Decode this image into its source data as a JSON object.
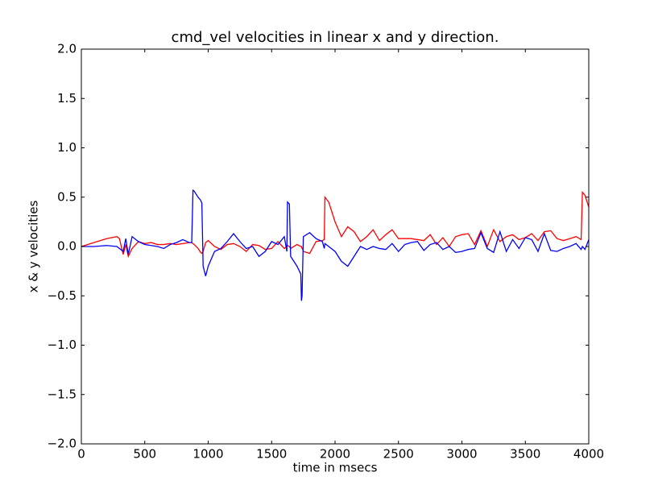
{
  "chart_data": {
    "type": "line",
    "title": "cmd_vel velocities in linear x and y direction.",
    "x_label": "time in msecs",
    "y_label": "x & y velocities",
    "x": [
      0,
      100,
      200,
      280,
      300,
      330,
      350,
      370,
      400,
      450,
      500,
      550,
      600,
      650,
      700,
      750,
      800,
      850,
      870,
      880,
      890,
      920,
      940,
      950,
      960,
      980,
      1000,
      1050,
      1100,
      1150,
      1200,
      1250,
      1300,
      1350,
      1400,
      1450,
      1500,
      1550,
      1600,
      1620,
      1625,
      1640,
      1650,
      1700,
      1730,
      1735,
      1740,
      1745,
      1750,
      1800,
      1850,
      1900,
      1915,
      1920,
      1950,
      2000,
      2050,
      2100,
      2150,
      2200,
      2250,
      2300,
      2350,
      2400,
      2450,
      2500,
      2550,
      2600,
      2650,
      2700,
      2750,
      2800,
      2850,
      2900,
      2950,
      3000,
      3050,
      3100,
      3150,
      3200,
      3250,
      3300,
      3350,
      3400,
      3450,
      3500,
      3550,
      3600,
      3650,
      3700,
      3750,
      3800,
      3850,
      3900,
      3940,
      3950,
      3970,
      4000
    ],
    "series": [
      {
        "color": "#ff0000",
        "values": [
          0.0,
          0.04,
          0.08,
          0.1,
          0.08,
          -0.08,
          0.02,
          -0.1,
          -0.02,
          0.05,
          0.03,
          0.04,
          0.02,
          0.02,
          0.03,
          0.02,
          0.03,
          0.04,
          0.04,
          0.03,
          0.02,
          -0.02,
          -0.06,
          -0.07,
          -0.05,
          0.04,
          0.06,
          0.0,
          -0.03,
          0.02,
          0.03,
          0.0,
          -0.05,
          0.02,
          0.01,
          -0.03,
          -0.02,
          0.05,
          -0.02,
          0.0,
          0.01,
          0.0,
          -0.02,
          0.02,
          0.0,
          0.0,
          -0.02,
          -0.03,
          -0.05,
          -0.07,
          0.05,
          0.06,
          0.07,
          0.5,
          0.45,
          0.25,
          0.1,
          0.2,
          0.15,
          0.05,
          0.1,
          0.17,
          0.06,
          0.12,
          0.17,
          0.08,
          0.08,
          0.08,
          0.07,
          0.06,
          0.12,
          0.02,
          0.09,
          0.0,
          0.1,
          0.12,
          0.13,
          0.02,
          0.16,
          0.0,
          0.17,
          0.05,
          0.1,
          0.12,
          0.07,
          0.09,
          0.13,
          0.06,
          0.15,
          0.16,
          0.08,
          0.06,
          0.08,
          0.1,
          0.07,
          0.55,
          0.52,
          0.4
        ]
      },
      {
        "color": "#0000ff",
        "values": [
          0.0,
          0.0,
          0.01,
          0.0,
          -0.02,
          -0.05,
          0.08,
          -0.08,
          0.1,
          0.05,
          0.02,
          0.01,
          0.0,
          -0.02,
          0.02,
          0.04,
          0.07,
          0.04,
          0.04,
          0.57,
          0.56,
          0.5,
          0.47,
          0.44,
          -0.2,
          -0.3,
          -0.2,
          -0.05,
          -0.02,
          0.05,
          0.13,
          0.05,
          -0.02,
          0.0,
          -0.1,
          -0.05,
          0.05,
          0.02,
          0.1,
          -0.05,
          0.45,
          0.43,
          -0.1,
          -0.2,
          -0.28,
          -0.55,
          -0.5,
          -0.2,
          0.1,
          0.14,
          0.08,
          0.05,
          -0.02,
          0.03,
          0.0,
          -0.05,
          -0.15,
          -0.2,
          -0.1,
          0.0,
          -0.03,
          0.0,
          -0.02,
          -0.03,
          0.03,
          -0.05,
          0.02,
          0.04,
          0.05,
          -0.04,
          0.02,
          0.04,
          -0.03,
          0.0,
          -0.06,
          -0.05,
          -0.03,
          -0.02,
          0.14,
          -0.02,
          -0.06,
          0.15,
          -0.05,
          0.07,
          -0.02,
          0.09,
          0.07,
          -0.05,
          0.13,
          -0.04,
          -0.05,
          -0.02,
          0.0,
          0.03,
          -0.03,
          0.0,
          -0.03,
          0.07
        ]
      }
    ],
    "xlim": [
      0,
      4000
    ],
    "xticks": [
      0,
      500,
      1000,
      1500,
      2000,
      2500,
      3000,
      3500,
      4000
    ],
    "ylim": [
      -2.0,
      2.0
    ],
    "yticks": [
      {
        "value": -2.0,
        "label": "−2.0"
      },
      {
        "value": -1.5,
        "label": "−1.5"
      },
      {
        "value": -1.0,
        "label": "−1.0"
      },
      {
        "value": -0.5,
        "label": "−0.5"
      },
      {
        "value": 0.0,
        "label": "0.0"
      },
      {
        "value": 0.5,
        "label": "0.5"
      },
      {
        "value": 1.0,
        "label": "1.0"
      },
      {
        "value": 1.5,
        "label": "1.5"
      },
      {
        "value": 2.0,
        "label": "2.0"
      }
    ]
  }
}
